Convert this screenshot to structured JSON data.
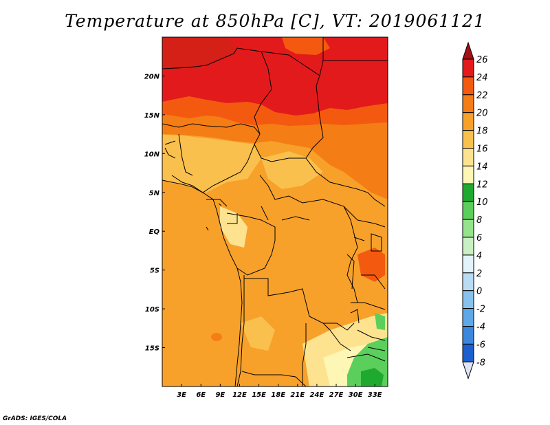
{
  "title": "Temperature at 850hPa [C], VT: 2019061121",
  "credit": "GrADS: IGES/COLA",
  "map": {
    "lon_range": [
      0,
      35
    ],
    "lat_range": [
      -20,
      25
    ],
    "x_ticks": [
      "3E",
      "6E",
      "9E",
      "12E",
      "15E",
      "18E",
      "21E",
      "24E",
      "27E",
      "30E",
      "33E"
    ],
    "y_ticks": [
      "20N",
      "15N",
      "10N",
      "5N",
      "EQ",
      "5S",
      "10S",
      "15S"
    ]
  },
  "colorbar": {
    "levels": [
      "26",
      "24",
      "22",
      "20",
      "18",
      "16",
      "14",
      "12",
      "10",
      "8",
      "6",
      "4",
      "2",
      "0",
      "-2",
      "-4",
      "-6",
      "-8"
    ],
    "colors": [
      "#a50f15",
      "#e31a1c",
      "#f35a10",
      "#f57d15",
      "#f7a12a",
      "#fac04d",
      "#fde38f",
      "#fef6b5",
      "#1fa92e",
      "#5bcf5b",
      "#95e38d",
      "#c9f0c2",
      "#e2f3fb",
      "#b7dcf4",
      "#86c2ed",
      "#5da8e6",
      "#3b87de",
      "#1b5fcf",
      "#0d3ea8",
      "#061a74",
      "#e0e4f7"
    ]
  }
}
